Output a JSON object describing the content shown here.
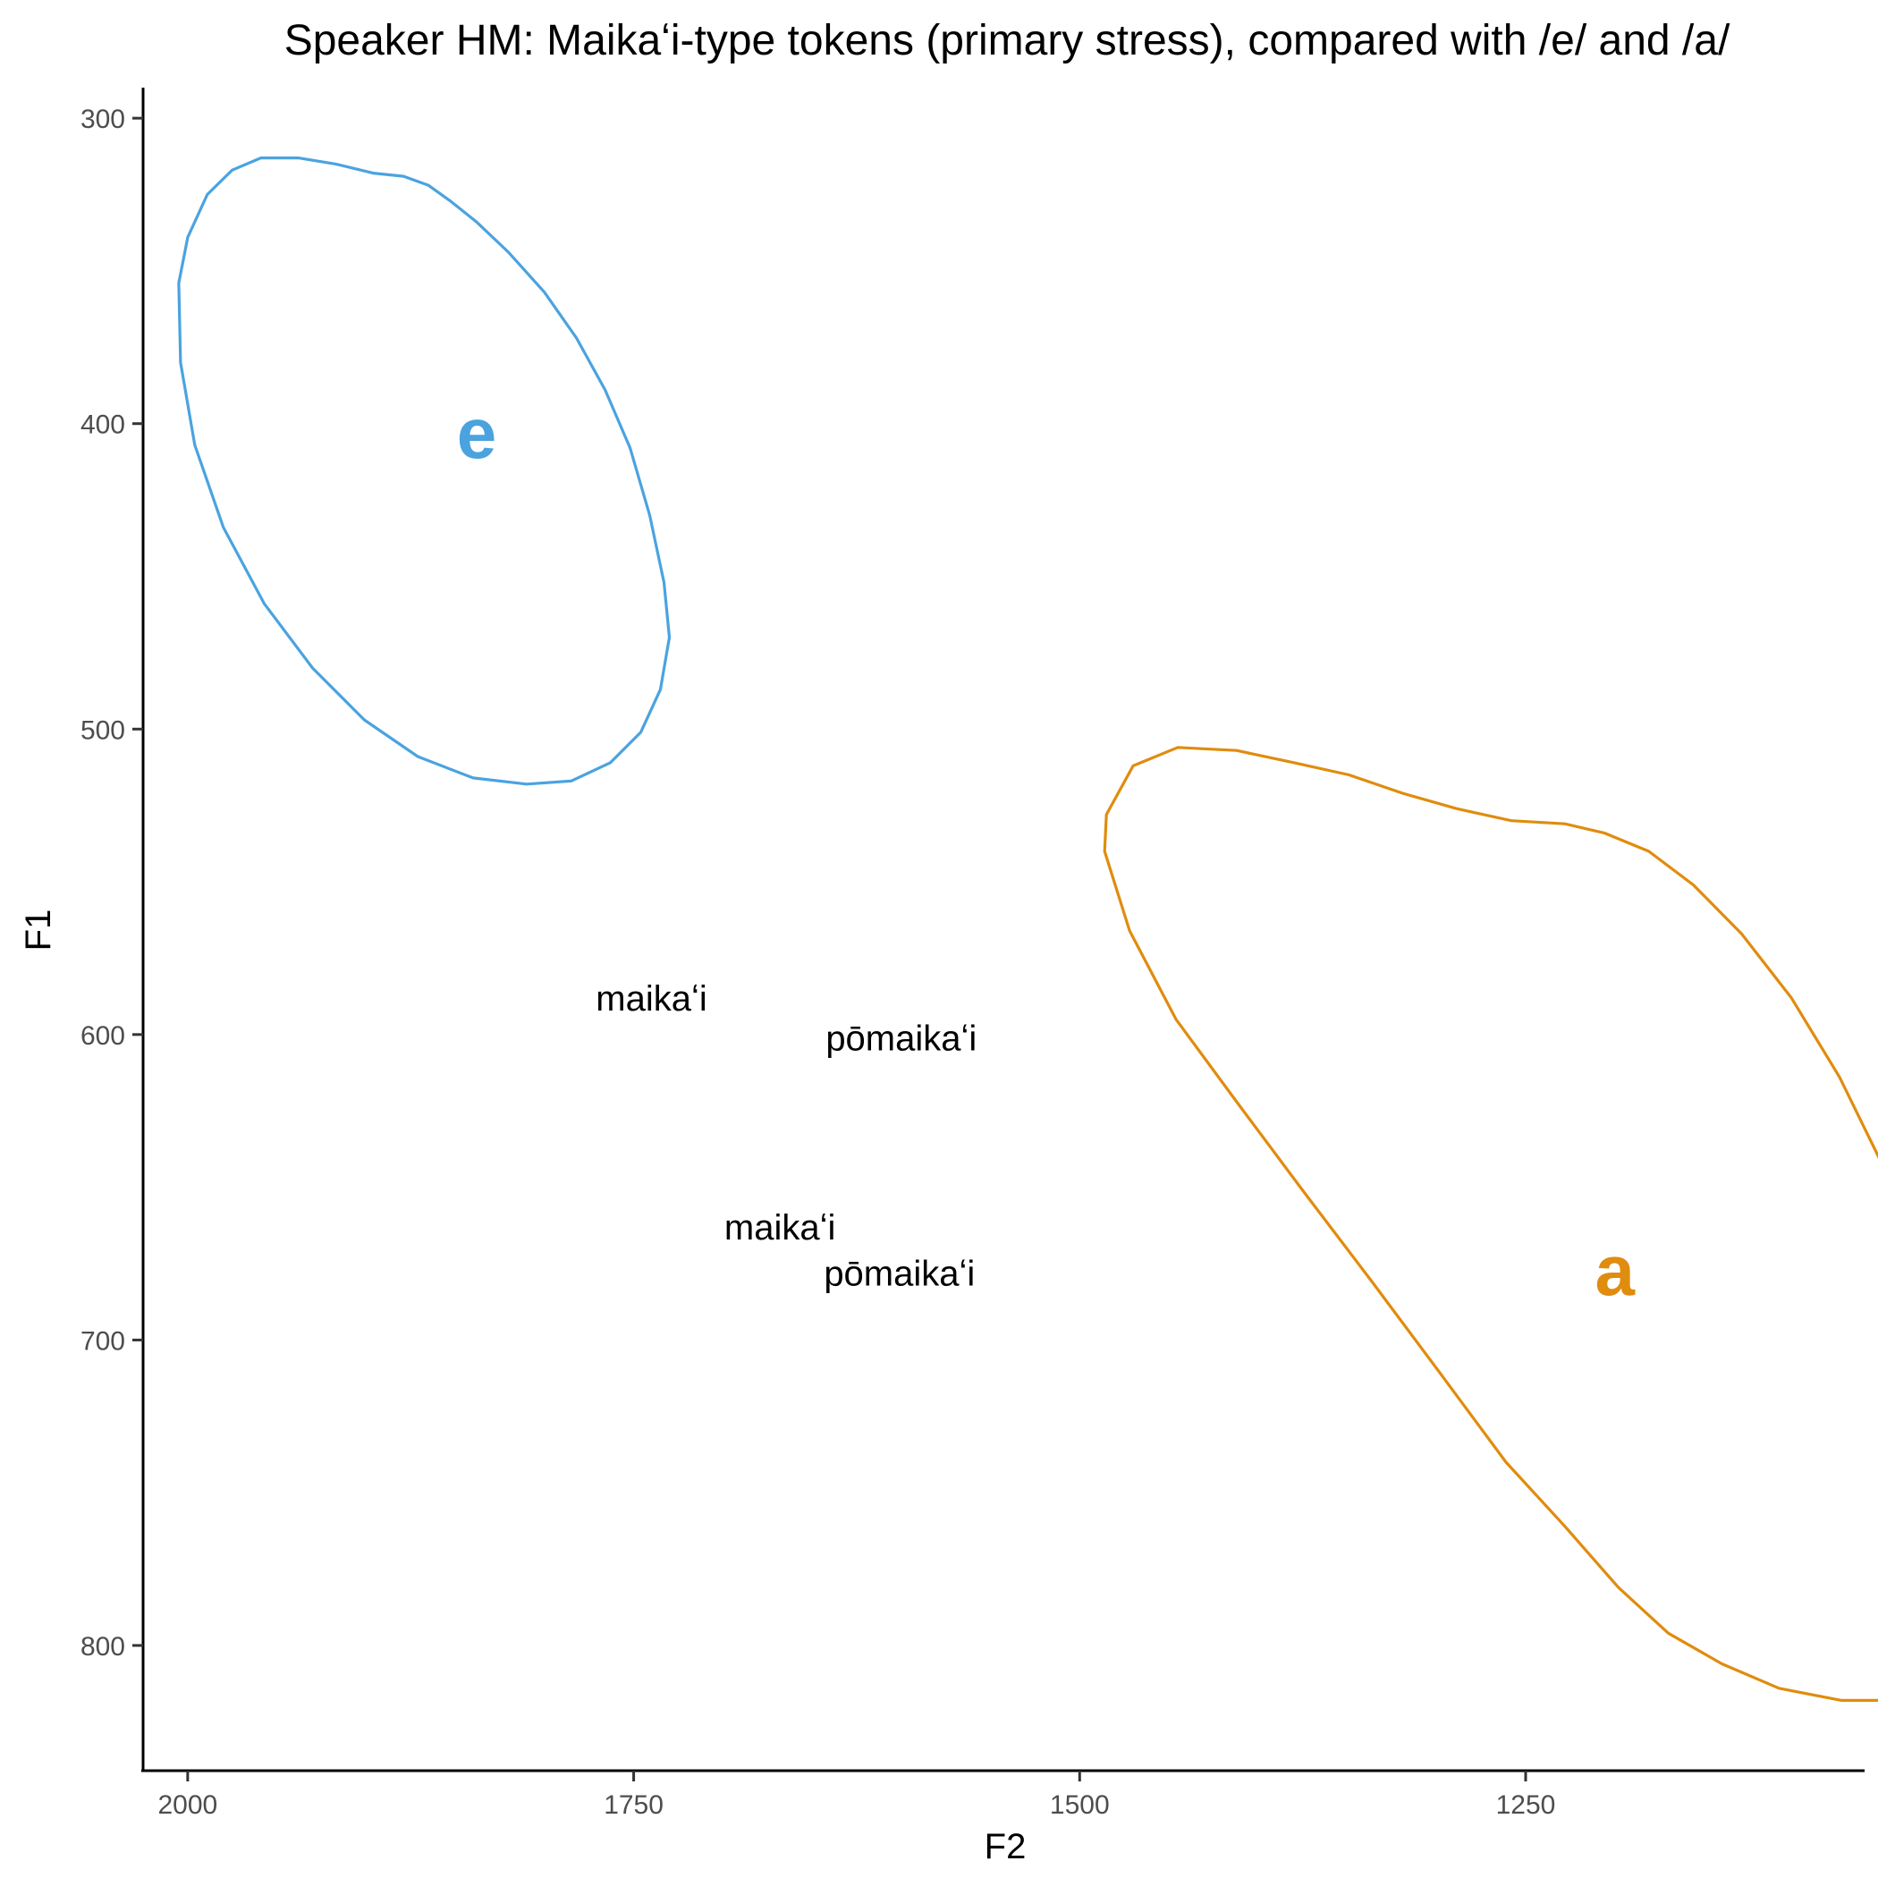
{
  "chart_data": {
    "type": "scatter",
    "title": "Speaker HM: Maikaʻi-type tokens (primary stress), compared with /e/ and /a/",
    "xlabel": "F2",
    "ylabel": "F1",
    "x_reversed": true,
    "y_reversed": true,
    "xlim": [
      2025,
      1060
    ],
    "ylim": [
      290,
      841
    ],
    "x_ticks": [
      2000,
      1750,
      1500,
      1250
    ],
    "y_ticks": [
      300,
      400,
      500,
      600,
      700,
      800
    ],
    "tokens": [
      {
        "label": "maikaʻi",
        "x": 1740,
        "y": 588
      },
      {
        "label": "pōmaikaʻi",
        "x": 1600,
        "y": 601
      },
      {
        "label": "maikaʻi",
        "x": 1668,
        "y": 663
      },
      {
        "label": "pōmaikaʻi",
        "x": 1601,
        "y": 678
      }
    ],
    "vowels": [
      {
        "label": "e",
        "color": "#4aa3df",
        "center_x": 1838,
        "center_y": 403,
        "semi_major": 104,
        "semi_minor": 94,
        "scale_minor_axis_to_x": true,
        "angle_deg": -41,
        "draw_minor_in_x": true,
        "ellipse_points": [
          [
            1896,
            318
          ],
          [
            1879,
            319
          ],
          [
            1865,
            322
          ],
          [
            1853,
            327
          ],
          [
            1838,
            334
          ],
          [
            1820,
            344
          ],
          [
            1800,
            357
          ],
          [
            1782,
            372
          ],
          [
            1766,
            389
          ],
          [
            1752,
            408
          ],
          [
            1741,
            430
          ],
          [
            1733,
            452
          ],
          [
            1730,
            470
          ],
          [
            1735,
            487
          ],
          [
            1746,
            501
          ],
          [
            1763,
            511
          ],
          [
            1785,
            517
          ],
          [
            1810,
            518
          ],
          [
            1840,
            516
          ],
          [
            1871,
            509
          ],
          [
            1901,
            497
          ],
          [
            1930,
            480
          ],
          [
            1957,
            459
          ],
          [
            1980,
            434
          ],
          [
            1996,
            407
          ],
          [
            2004,
            380
          ],
          [
            2005,
            354
          ],
          [
            2000,
            339
          ],
          [
            1989,
            325
          ],
          [
            1975,
            317
          ],
          [
            1959,
            313
          ],
          [
            1938,
            313
          ],
          [
            1917,
            315
          ]
        ]
      },
      {
        "label": "a",
        "color": "#e08c0e",
        "center_x": 1200,
        "center_y": 677,
        "ellipse_points": [
          [
            1228,
            531
          ],
          [
            1206,
            534
          ],
          [
            1181,
            540
          ],
          [
            1156,
            551
          ],
          [
            1129,
            567
          ],
          [
            1101,
            588
          ],
          [
            1074,
            614
          ],
          [
            1048,
            645
          ],
          [
            1028,
            677
          ],
          [
            1012,
            712
          ],
          [
            1004,
            740
          ],
          [
            1003,
            760
          ],
          [
            1006,
            780
          ],
          [
            1013,
            799
          ],
          [
            1024,
            811
          ],
          [
            1043,
            818
          ],
          [
            1073,
            818
          ],
          [
            1108,
            814
          ],
          [
            1140,
            806
          ],
          [
            1170,
            796
          ],
          [
            1198,
            781
          ],
          [
            1228,
            761
          ],
          [
            1261,
            740
          ],
          [
            1299,
            710
          ],
          [
            1336,
            681
          ],
          [
            1375,
            651
          ],
          [
            1412,
            622
          ],
          [
            1446,
            595
          ],
          [
            1472,
            566
          ],
          [
            1486,
            540
          ],
          [
            1485,
            528
          ],
          [
            1470,
            512
          ],
          [
            1445,
            506
          ],
          [
            1412,
            507
          ],
          [
            1380,
            511
          ],
          [
            1349,
            515
          ],
          [
            1319,
            521
          ],
          [
            1289,
            526
          ],
          [
            1258,
            530
          ]
        ]
      }
    ]
  }
}
